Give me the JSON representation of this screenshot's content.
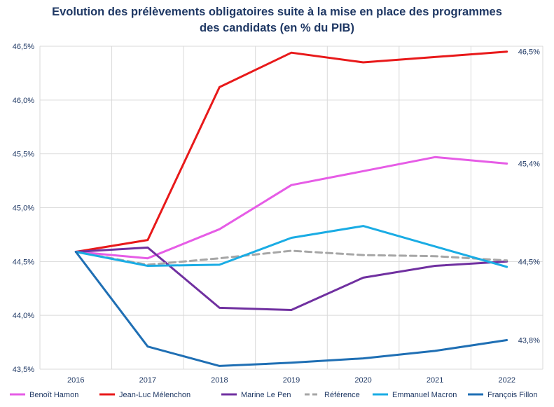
{
  "chart_data": {
    "type": "line",
    "title_line1": "Evolution des prélèvements obligatoires suite à la mise en place des programmes",
    "title_line2": "des candidats (en % du PIB)",
    "x": [
      "2016",
      "2017",
      "2018",
      "2019",
      "2020",
      "2021",
      "2022"
    ],
    "ylim": [
      43.5,
      46.5
    ],
    "yticks": [
      "43,5%",
      "44,0%",
      "44,5%",
      "45,0%",
      "45,5%",
      "46,0%",
      "46,5%"
    ],
    "grid": true,
    "legend_position": "bottom",
    "series": [
      {
        "name": "Benoît Hamon",
        "color": "#e65ce6",
        "dashed": false,
        "values": [
          44.59,
          44.53,
          44.8,
          45.21,
          45.34,
          45.47,
          45.41
        ]
      },
      {
        "name": "Jean-Luc Mélenchon",
        "color": "#e8191a",
        "dashed": false,
        "values": [
          44.59,
          44.7,
          46.12,
          46.44,
          46.35,
          46.4,
          46.45
        ]
      },
      {
        "name": "Marine Le Pen",
        "color": "#7030a0",
        "dashed": false,
        "values": [
          44.59,
          44.63,
          44.07,
          44.05,
          44.35,
          44.46,
          44.5
        ]
      },
      {
        "name": "Référence",
        "color": "#a6a6a6",
        "dashed": true,
        "values": [
          44.59,
          44.47,
          44.53,
          44.6,
          44.56,
          44.55,
          44.51
        ]
      },
      {
        "name": "Emmanuel Macron",
        "color": "#1aace4",
        "dashed": false,
        "values": [
          44.59,
          44.46,
          44.47,
          44.72,
          44.83,
          44.64,
          44.45
        ]
      },
      {
        "name": "François Fillon",
        "color": "#1f6fb4",
        "dashed": false,
        "values": [
          44.59,
          43.71,
          43.53,
          43.56,
          43.6,
          43.67,
          43.77
        ]
      }
    ],
    "annotations": [
      {
        "text": "46,5%",
        "value": 46.45,
        "x": "2022"
      },
      {
        "text": "45,4%",
        "value": 45.41,
        "x": "2022"
      },
      {
        "text": "44,5%",
        "value": 44.5,
        "x": "2022"
      },
      {
        "text": "43,8%",
        "value": 43.77,
        "x": "2022"
      }
    ]
  }
}
